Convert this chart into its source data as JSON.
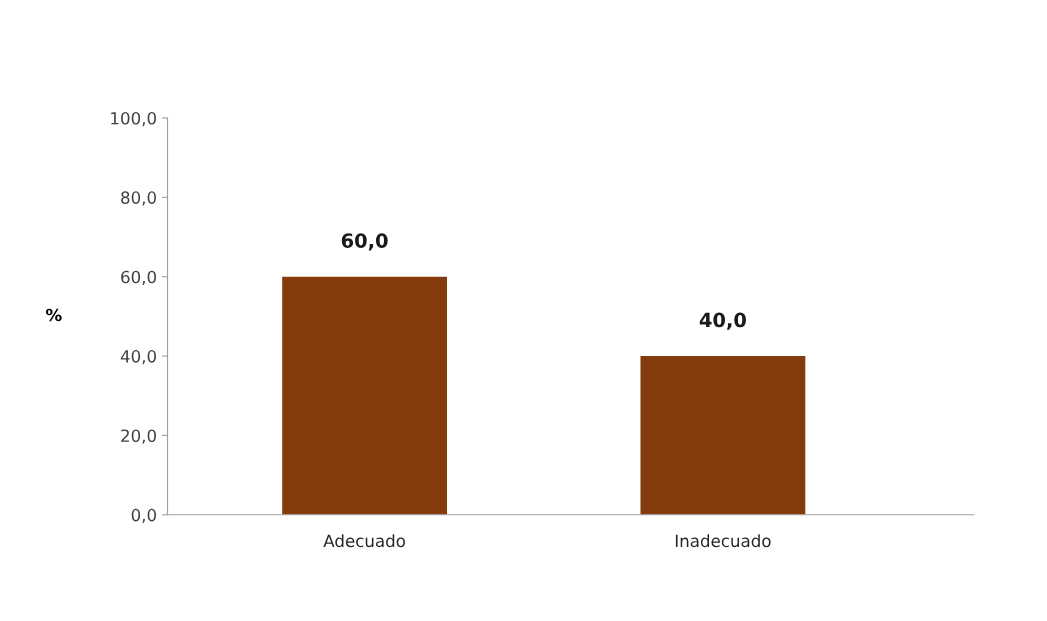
{
  "chart_data": {
    "type": "bar",
    "ylabel": "%",
    "categories": [
      "Adecuado",
      "Inadecuado"
    ],
    "values": [
      60.0,
      40.0
    ],
    "color": "#843c0c",
    "value_labels": [
      "60,0",
      "40,0"
    ],
    "ylim": [
      0,
      100
    ],
    "yticks": [
      {
        "value": 0,
        "label": "0,0"
      },
      {
        "value": 20,
        "label": "20,0"
      },
      {
        "value": 40,
        "label": "40,0"
      },
      {
        "value": 60,
        "label": "60,0"
      },
      {
        "value": 80,
        "label": "80,0"
      },
      {
        "value": 100,
        "label": "100,0"
      }
    ],
    "grid": false
  }
}
